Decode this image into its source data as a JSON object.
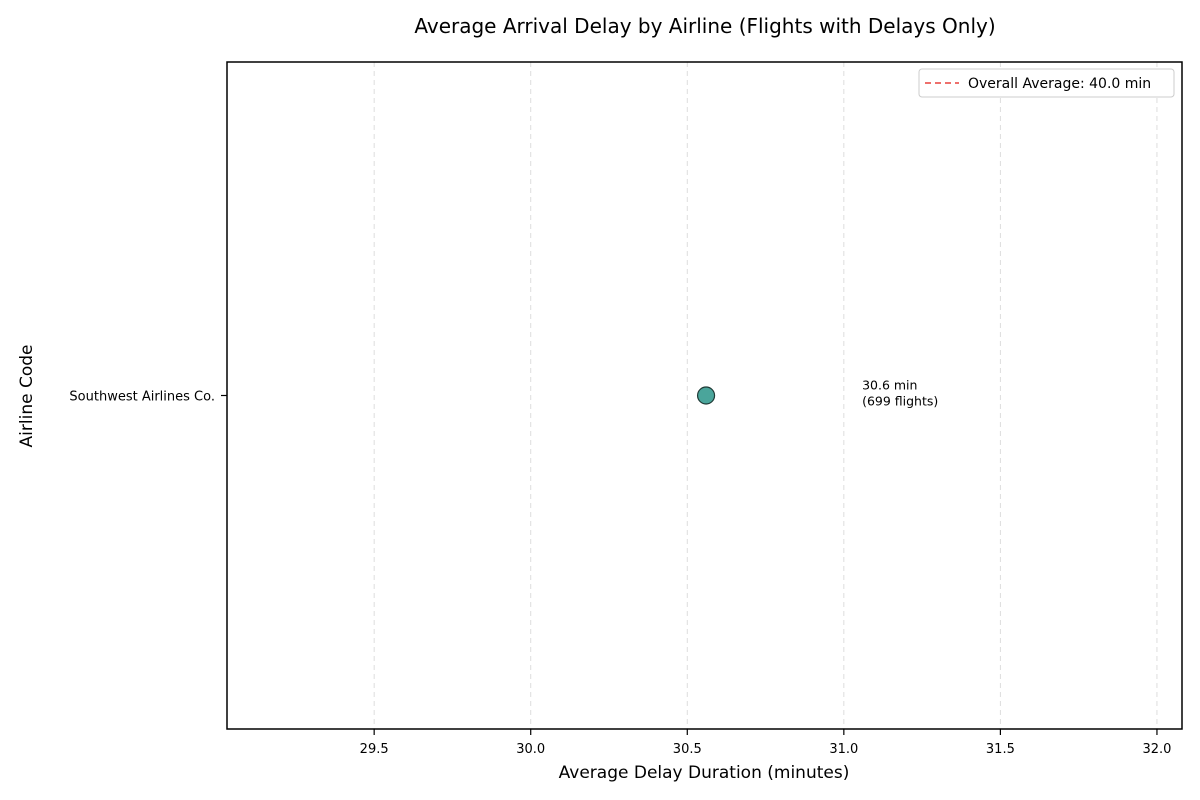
{
  "chart_data": {
    "type": "scatter",
    "title": "Average Arrival Delay by Airline (Flights with Delays Only)",
    "xlabel": "Average Delay Duration (minutes)",
    "ylabel": "Airline Code",
    "xlim": [
      29.03,
      32.08
    ],
    "xticks": [
      29.5,
      30.0,
      30.5,
      31.0,
      31.5,
      32.0
    ],
    "xtick_labels": [
      "29.5",
      "30.0",
      "30.5",
      "31.0",
      "31.5",
      "32.0"
    ],
    "grid": "x-dashed",
    "categories": [
      "Southwest Airlines Co."
    ],
    "points": [
      {
        "category": "Southwest Airlines Co.",
        "value": 30.56,
        "label_line1": "30.6 min",
        "label_line2": "(699 flights)"
      }
    ],
    "reference_line": {
      "value": 40.0,
      "label": "Overall Average: 40.0 min",
      "style": "dashed",
      "color": "#e8413c"
    },
    "legend_position": "top-right",
    "colors": {
      "marker": "#4aa59b",
      "marker_edge": "#1f3a36",
      "grid": "#dddddd"
    }
  }
}
